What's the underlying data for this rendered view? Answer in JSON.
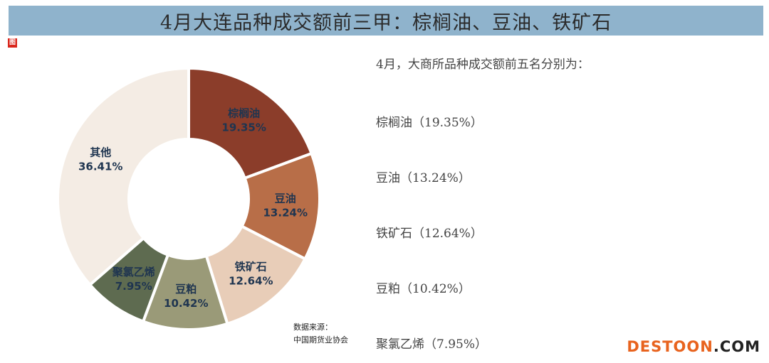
{
  "title": "4月大连品种成交额前三甲：棕榈油、豆油、铁矿石",
  "logo_text": "图",
  "source": {
    "line1": "数据来源：",
    "line2": "中国期货业协会"
  },
  "right_panel": {
    "intro": "4月，大商所品种成交额前五名分别为：",
    "items": [
      "棕榈油（19.35%）",
      "豆油（13.24%）",
      "铁矿石（12.64%）",
      "豆粕（10.42%）",
      "聚氯乙烯（7.95%）"
    ]
  },
  "watermark": {
    "main": "DESTOON",
    "dot": ".",
    "tld": "COM"
  },
  "chart_data": {
    "type": "pie",
    "donut": true,
    "categories": [
      "棕榈油",
      "豆油",
      "铁矿石",
      "豆粕",
      "聚氯乙烯",
      "其他"
    ],
    "values": [
      19.35,
      13.24,
      12.64,
      10.42,
      7.95,
      36.41
    ],
    "value_labels": [
      "19.35%",
      "13.24%",
      "12.64%",
      "10.42%",
      "7.95%",
      "36.41%"
    ],
    "colors": [
      "#8b3d2a",
      "#b86e48",
      "#e8cdb8",
      "#9a9a78",
      "#5e6b50",
      "#f4ece4"
    ],
    "start_angle": "top",
    "direction": "clockwise"
  }
}
